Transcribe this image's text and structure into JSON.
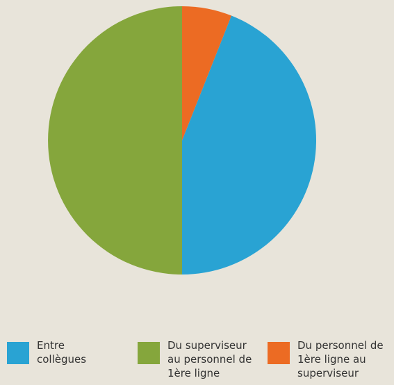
{
  "chart_data": {
    "type": "pie",
    "categories": [
      "Entre collègues",
      "Du superviseur au personnel de 1ère ligne",
      "Du personnel de 1ère ligne au superviseur"
    ],
    "values": [
      44,
      50,
      6
    ],
    "colors": [
      "#29a3d3",
      "#85a63c",
      "#ec6b23"
    ]
  }
}
